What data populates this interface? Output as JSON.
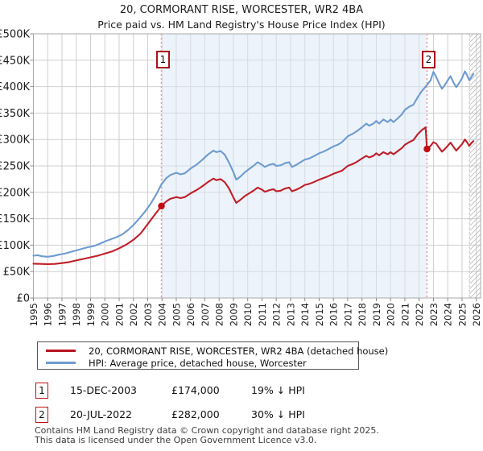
{
  "page": {
    "title": "20, CORMORANT RISE, WORCESTER, WR2 4BA",
    "subtitle": "Price paid vs. HM Land Registry's House Price Index (HPI)",
    "footer": [
      "Contains HM Land Registry data © Crown copyright and database right 2025.",
      "This data is licensed under the Open Government Licence v3.0."
    ]
  },
  "legend": {
    "items": [
      {
        "label": "20, CORMORANT RISE, WORCESTER, WR2 4BA (detached house)",
        "color": "#b8141f"
      },
      {
        "label": "HPI: Average price, detached house, Worcester",
        "color": "#6d9bd0"
      }
    ]
  },
  "sales_table": {
    "rows": [
      {
        "marker": "1",
        "date": "15-DEC-2003",
        "price": "£174,000",
        "vs_hpi": "19% ↓ HPI"
      },
      {
        "marker": "2",
        "date": "20-JUL-2022",
        "price": "£282,000",
        "vs_hpi": "30% ↓ HPI"
      }
    ]
  },
  "chart_data": {
    "type": "line",
    "title": "20, CORMORANT RISE, WORCESTER, WR2 4BA",
    "subtitle": "Price paid vs. HM Land Registry's House Price Index (HPI)",
    "x_axis": {
      "min": 1995,
      "max": 2026.3,
      "ticks": [
        1995,
        1996,
        1997,
        1998,
        1999,
        2000,
        2001,
        2002,
        2003,
        2004,
        2005,
        2006,
        2007,
        2008,
        2009,
        2010,
        2011,
        2012,
        2013,
        2014,
        2015,
        2016,
        2017,
        2018,
        2019,
        2020,
        2021,
        2022,
        2023,
        2024,
        2025,
        2026
      ]
    },
    "y_axis": {
      "min": 0,
      "max": 500000,
      "tick_values": [
        0,
        50000,
        100000,
        150000,
        200000,
        250000,
        300000,
        350000,
        400000,
        450000,
        500000
      ],
      "tick_labels": [
        "£0",
        "£50K",
        "£100K",
        "£150K",
        "£200K",
        "£250K",
        "£300K",
        "£350K",
        "£400K",
        "£450K",
        "£500K"
      ]
    },
    "grid": true,
    "shaded_region": {
      "from": 2003.96,
      "to": 2022.55,
      "color": "#dce7f6"
    },
    "no_data_hatch_from": 2025.52,
    "colors": {
      "price_paid": "#c11e28",
      "hpi": "#6d9bd0",
      "sale_line": "#f09a9a",
      "sale_dot": "#c40b15",
      "grid": "#cfcfcf",
      "plot_border": "#aaaaaa"
    },
    "sale_markers": [
      {
        "label": "1",
        "t": 2003.96,
        "price": 174000
      },
      {
        "label": "2",
        "t": 2022.55,
        "price": 282000
      }
    ],
    "series": [
      {
        "name": "HPI: Average price, detached house, Worcester",
        "color": "#6d9bd0",
        "points": [
          [
            1995.0,
            80000
          ],
          [
            1995.3,
            81000
          ],
          [
            1995.6,
            79000
          ],
          [
            1996.0,
            78000
          ],
          [
            1996.4,
            79500
          ],
          [
            1996.8,
            82000
          ],
          [
            1997.2,
            84000
          ],
          [
            1997.6,
            87000
          ],
          [
            1998.0,
            90000
          ],
          [
            1998.4,
            93000
          ],
          [
            1998.8,
            96000
          ],
          [
            1999.2,
            98000
          ],
          [
            1999.6,
            102000
          ],
          [
            2000.0,
            107000
          ],
          [
            2000.4,
            111000
          ],
          [
            2000.8,
            115000
          ],
          [
            2001.2,
            120000
          ],
          [
            2001.6,
            128000
          ],
          [
            2002.0,
            138000
          ],
          [
            2002.4,
            150000
          ],
          [
            2002.8,
            163000
          ],
          [
            2003.2,
            178000
          ],
          [
            2003.6,
            196000
          ],
          [
            2003.96,
            215000
          ],
          [
            2004.3,
            227000
          ],
          [
            2004.6,
            233000
          ],
          [
            2005.0,
            237000
          ],
          [
            2005.3,
            234000
          ],
          [
            2005.6,
            236000
          ],
          [
            2006.0,
            245000
          ],
          [
            2006.4,
            252000
          ],
          [
            2006.8,
            261000
          ],
          [
            2007.2,
            271000
          ],
          [
            2007.6,
            279000
          ],
          [
            2007.8,
            276000
          ],
          [
            2008.1,
            278000
          ],
          [
            2008.4,
            271000
          ],
          [
            2008.7,
            256000
          ],
          [
            2009.0,
            238000
          ],
          [
            2009.2,
            224000
          ],
          [
            2009.5,
            230000
          ],
          [
            2009.8,
            238000
          ],
          [
            2010.1,
            244000
          ],
          [
            2010.4,
            250000
          ],
          [
            2010.7,
            257000
          ],
          [
            2011.0,
            252000
          ],
          [
            2011.2,
            248000
          ],
          [
            2011.5,
            252000
          ],
          [
            2011.8,
            254000
          ],
          [
            2012.0,
            250000
          ],
          [
            2012.3,
            251000
          ],
          [
            2012.6,
            255000
          ],
          [
            2012.9,
            257000
          ],
          [
            2013.1,
            248000
          ],
          [
            2013.4,
            252000
          ],
          [
            2013.7,
            257000
          ],
          [
            2014.0,
            262000
          ],
          [
            2014.3,
            264000
          ],
          [
            2014.6,
            268000
          ],
          [
            2015.0,
            274000
          ],
          [
            2015.3,
            277000
          ],
          [
            2015.6,
            281000
          ],
          [
            2016.0,
            287000
          ],
          [
            2016.3,
            290000
          ],
          [
            2016.6,
            295000
          ],
          [
            2017.0,
            306000
          ],
          [
            2017.3,
            310000
          ],
          [
            2017.6,
            315000
          ],
          [
            2018.0,
            323000
          ],
          [
            2018.3,
            330000
          ],
          [
            2018.5,
            326000
          ],
          [
            2018.8,
            330000
          ],
          [
            2019.0,
            335000
          ],
          [
            2019.2,
            330000
          ],
          [
            2019.5,
            338000
          ],
          [
            2019.8,
            333000
          ],
          [
            2020.0,
            338000
          ],
          [
            2020.2,
            333000
          ],
          [
            2020.5,
            340000
          ],
          [
            2020.8,
            348000
          ],
          [
            2021.0,
            356000
          ],
          [
            2021.3,
            362000
          ],
          [
            2021.6,
            366000
          ],
          [
            2021.9,
            380000
          ],
          [
            2022.2,
            392000
          ],
          [
            2022.55,
            403000
          ],
          [
            2022.8,
            412000
          ],
          [
            2023.0,
            428000
          ],
          [
            2023.2,
            418000
          ],
          [
            2023.4,
            406000
          ],
          [
            2023.6,
            396000
          ],
          [
            2023.8,
            403000
          ],
          [
            2024.0,
            412000
          ],
          [
            2024.2,
            420000
          ],
          [
            2024.4,
            408000
          ],
          [
            2024.6,
            399000
          ],
          [
            2024.8,
            407000
          ],
          [
            2025.0,
            416000
          ],
          [
            2025.2,
            429000
          ],
          [
            2025.35,
            422000
          ],
          [
            2025.5,
            412000
          ],
          [
            2025.65,
            418000
          ],
          [
            2025.8,
            424000
          ]
        ]
      },
      {
        "name": "20, CORMORANT RISE, WORCESTER, WR2 4BA (detached house)",
        "color": "#c11e28",
        "points": [
          [
            1995.0,
            65000
          ],
          [
            1995.5,
            64500
          ],
          [
            1996.0,
            64000
          ],
          [
            1996.5,
            64500
          ],
          [
            1997.0,
            66000
          ],
          [
            1997.5,
            68000
          ],
          [
            1998.0,
            71000
          ],
          [
            1998.5,
            74000
          ],
          [
            1999.0,
            77000
          ],
          [
            1999.5,
            80000
          ],
          [
            2000.0,
            84000
          ],
          [
            2000.5,
            88000
          ],
          [
            2001.0,
            94000
          ],
          [
            2001.5,
            101000
          ],
          [
            2002.0,
            110000
          ],
          [
            2002.5,
            122000
          ],
          [
            2003.0,
            140000
          ],
          [
            2003.5,
            158000
          ],
          [
            2003.96,
            174000
          ],
          [
            2004.3,
            183000
          ],
          [
            2004.6,
            188000
          ],
          [
            2005.0,
            191000
          ],
          [
            2005.3,
            189000
          ],
          [
            2005.6,
            191000
          ],
          [
            2006.0,
            198000
          ],
          [
            2006.4,
            204000
          ],
          [
            2006.8,
            211000
          ],
          [
            2007.2,
            219000
          ],
          [
            2007.6,
            226000
          ],
          [
            2007.8,
            223000
          ],
          [
            2008.1,
            225000
          ],
          [
            2008.4,
            219000
          ],
          [
            2008.7,
            207000
          ],
          [
            2009.0,
            190000
          ],
          [
            2009.2,
            180000
          ],
          [
            2009.5,
            186000
          ],
          [
            2009.8,
            193000
          ],
          [
            2010.1,
            198000
          ],
          [
            2010.4,
            203000
          ],
          [
            2010.7,
            209000
          ],
          [
            2011.0,
            205000
          ],
          [
            2011.2,
            201000
          ],
          [
            2011.5,
            204000
          ],
          [
            2011.8,
            206000
          ],
          [
            2012.0,
            202000
          ],
          [
            2012.3,
            203000
          ],
          [
            2012.6,
            207000
          ],
          [
            2012.9,
            209000
          ],
          [
            2013.1,
            202000
          ],
          [
            2013.4,
            205000
          ],
          [
            2013.7,
            209000
          ],
          [
            2014.0,
            214000
          ],
          [
            2014.3,
            216000
          ],
          [
            2014.6,
            219000
          ],
          [
            2015.0,
            224000
          ],
          [
            2015.3,
            227000
          ],
          [
            2015.6,
            230000
          ],
          [
            2016.0,
            235000
          ],
          [
            2016.3,
            238000
          ],
          [
            2016.6,
            241000
          ],
          [
            2017.0,
            250000
          ],
          [
            2017.3,
            253000
          ],
          [
            2017.6,
            257000
          ],
          [
            2018.0,
            264000
          ],
          [
            2018.3,
            269000
          ],
          [
            2018.5,
            266000
          ],
          [
            2018.8,
            269000
          ],
          [
            2019.0,
            274000
          ],
          [
            2019.2,
            270000
          ],
          [
            2019.5,
            276000
          ],
          [
            2019.8,
            272000
          ],
          [
            2020.0,
            276000
          ],
          [
            2020.2,
            272000
          ],
          [
            2020.5,
            278000
          ],
          [
            2020.8,
            284000
          ],
          [
            2021.0,
            290000
          ],
          [
            2021.3,
            295000
          ],
          [
            2021.6,
            299000
          ],
          [
            2021.9,
            310000
          ],
          [
            2022.2,
            318000
          ],
          [
            2022.45,
            323000
          ],
          [
            2022.55,
            282000
          ],
          [
            2022.8,
            288000
          ],
          [
            2023.0,
            295000
          ],
          [
            2023.2,
            292000
          ],
          [
            2023.4,
            284000
          ],
          [
            2023.6,
            277000
          ],
          [
            2023.8,
            282000
          ],
          [
            2024.0,
            288000
          ],
          [
            2024.2,
            294000
          ],
          [
            2024.4,
            286000
          ],
          [
            2024.6,
            279000
          ],
          [
            2024.8,
            285000
          ],
          [
            2025.0,
            291000
          ],
          [
            2025.2,
            300000
          ],
          [
            2025.35,
            295000
          ],
          [
            2025.5,
            288000
          ],
          [
            2025.65,
            293000
          ],
          [
            2025.8,
            297000
          ]
        ]
      }
    ]
  }
}
